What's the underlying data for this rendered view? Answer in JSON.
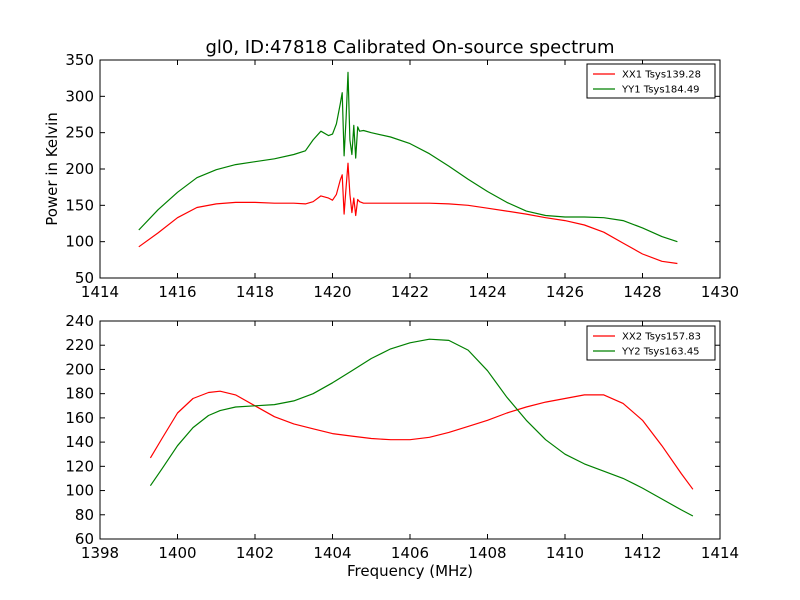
{
  "figure": {
    "title": "gl0, ID:47818 Calibrated On-source spectrum",
    "xlabel": "Frequency (MHz)",
    "ylabel": "Power in Kelvin"
  },
  "chart_data": [
    {
      "type": "line",
      "title": "gl0, ID:47818 Calibrated On-source spectrum",
      "xlabel": "",
      "ylabel": "Power in Kelvin",
      "xlim": [
        1414,
        1430
      ],
      "ylim": [
        50,
        350
      ],
      "xticks": [
        "1414",
        "1416",
        "1418",
        "1420",
        "1422",
        "1424",
        "1426",
        "1428",
        "1430"
      ],
      "yticks": [
        "50",
        "100",
        "150",
        "200",
        "250",
        "300",
        "350"
      ],
      "grid": false,
      "legend_position": "top-right",
      "series": [
        {
          "name": "XX1 Tsys139.28",
          "color": "#ff0000",
          "x": [
            1415.0,
            1415.5,
            1416.0,
            1416.5,
            1417.0,
            1417.5,
            1418.0,
            1418.5,
            1419.0,
            1419.3,
            1419.5,
            1419.7,
            1419.9,
            1420.0,
            1420.1,
            1420.2,
            1420.25,
            1420.3,
            1420.35,
            1420.4,
            1420.45,
            1420.5,
            1420.55,
            1420.6,
            1420.65,
            1420.7,
            1420.8,
            1421.0,
            1421.5,
            1422.0,
            1422.5,
            1423.0,
            1423.5,
            1424.0,
            1424.5,
            1425.0,
            1425.5,
            1426.0,
            1426.5,
            1427.0,
            1427.5,
            1428.0,
            1428.5,
            1428.9
          ],
          "y": [
            93,
            112,
            133,
            147,
            152,
            154,
            154,
            153,
            153,
            152,
            155,
            163,
            160,
            157,
            165,
            185,
            192,
            138,
            175,
            208,
            165,
            140,
            160,
            136,
            158,
            155,
            153,
            153,
            153,
            153,
            153,
            152,
            150,
            146,
            142,
            138,
            133,
            129,
            123,
            113,
            98,
            83,
            73,
            70
          ]
        },
        {
          "name": "YY1 Tsys184.49",
          "color": "#008000",
          "x": [
            1415.0,
            1415.5,
            1416.0,
            1416.5,
            1417.0,
            1417.5,
            1418.0,
            1418.5,
            1419.0,
            1419.3,
            1419.5,
            1419.7,
            1419.9,
            1420.0,
            1420.1,
            1420.2,
            1420.25,
            1420.3,
            1420.35,
            1420.4,
            1420.45,
            1420.5,
            1420.55,
            1420.6,
            1420.65,
            1420.7,
            1420.8,
            1421.0,
            1421.5,
            1422.0,
            1422.5,
            1423.0,
            1423.5,
            1424.0,
            1424.5,
            1425.0,
            1425.5,
            1426.0,
            1426.5,
            1427.0,
            1427.5,
            1428.0,
            1428.5,
            1428.9
          ],
          "y": [
            116,
            144,
            168,
            188,
            199,
            206,
            210,
            214,
            220,
            225,
            240,
            252,
            246,
            248,
            262,
            290,
            305,
            218,
            270,
            333,
            240,
            220,
            260,
            215,
            258,
            252,
            253,
            250,
            244,
            235,
            221,
            204,
            186,
            169,
            154,
            142,
            136,
            134,
            134,
            133,
            129,
            119,
            107,
            100
          ]
        }
      ]
    },
    {
      "type": "line",
      "title": "",
      "xlabel": "Frequency (MHz)",
      "ylabel": "",
      "xlim": [
        1398,
        1414
      ],
      "ylim": [
        60,
        240
      ],
      "xticks": [
        "1398",
        "1400",
        "1402",
        "1404",
        "1406",
        "1408",
        "1410",
        "1412",
        "1414"
      ],
      "yticks": [
        "60",
        "80",
        "100",
        "120",
        "140",
        "160",
        "180",
        "200",
        "220",
        "240"
      ],
      "grid": false,
      "legend_position": "top-right",
      "series": [
        {
          "name": "XX2 Tsys157.83",
          "color": "#ff0000",
          "x": [
            1399.3,
            1399.6,
            1400.0,
            1400.4,
            1400.8,
            1401.1,
            1401.5,
            1402.0,
            1402.5,
            1403.0,
            1403.5,
            1404.0,
            1404.5,
            1405.0,
            1405.5,
            1406.0,
            1406.5,
            1407.0,
            1407.5,
            1408.0,
            1408.5,
            1409.0,
            1409.5,
            1410.0,
            1410.5,
            1411.0,
            1411.5,
            1412.0,
            1412.5,
            1413.0,
            1413.3
          ],
          "y": [
            127,
            143,
            164,
            176,
            181,
            182,
            179,
            170,
            161,
            155,
            151,
            147,
            145,
            143,
            142,
            142,
            144,
            148,
            153,
            158,
            164,
            169,
            173,
            176,
            179,
            179,
            172,
            158,
            137,
            114,
            101
          ]
        },
        {
          "name": "YY2 Tsys163.45",
          "color": "#008000",
          "x": [
            1399.3,
            1399.6,
            1400.0,
            1400.4,
            1400.8,
            1401.1,
            1401.5,
            1402.0,
            1402.5,
            1403.0,
            1403.5,
            1404.0,
            1404.5,
            1405.0,
            1405.5,
            1406.0,
            1406.5,
            1407.0,
            1407.5,
            1408.0,
            1408.5,
            1409.0,
            1409.5,
            1410.0,
            1410.5,
            1411.0,
            1411.5,
            1412.0,
            1412.5,
            1413.0,
            1413.3
          ],
          "y": [
            104,
            118,
            137,
            152,
            162,
            166,
            169,
            170,
            171,
            174,
            180,
            189,
            199,
            209,
            217,
            222,
            225,
            224,
            216,
            199,
            177,
            158,
            142,
            130,
            122,
            116,
            110,
            102,
            93,
            84,
            79
          ]
        }
      ]
    }
  ]
}
